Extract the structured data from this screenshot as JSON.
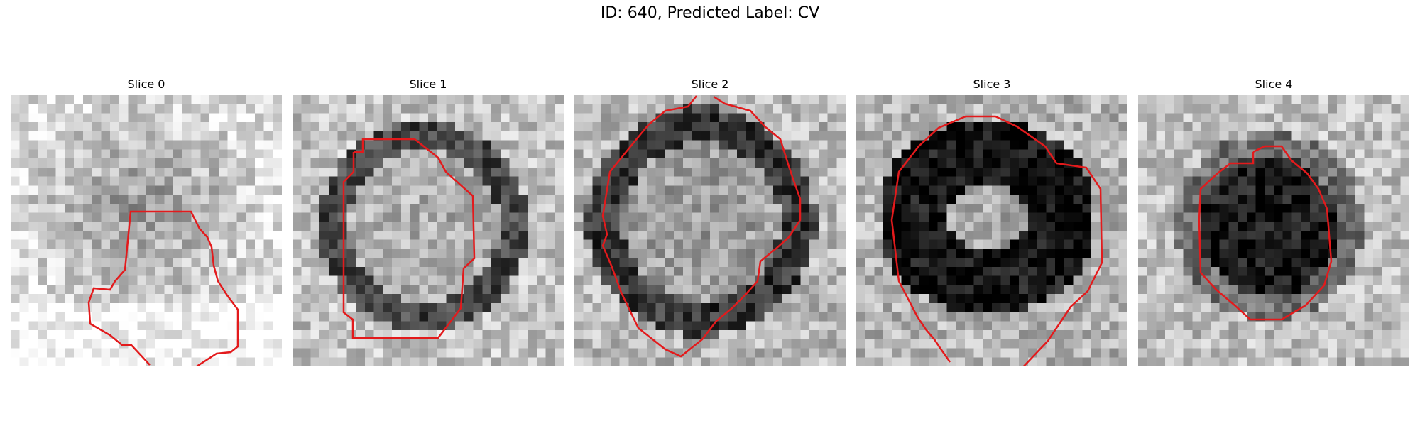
{
  "figure": {
    "title": "ID: 640, Predicted Label: CV"
  },
  "panels": [
    {
      "title": "Slice 0",
      "contour_color": "#e31a1c"
    },
    {
      "title": "Slice 1",
      "contour_color": "#e31a1c"
    },
    {
      "title": "Slice 2",
      "contour_color": "#e31a1c"
    },
    {
      "title": "Slice 3",
      "contour_color": "#e31a1c"
    },
    {
      "title": "Slice 4",
      "contour_color": "#e31a1c"
    }
  ]
}
